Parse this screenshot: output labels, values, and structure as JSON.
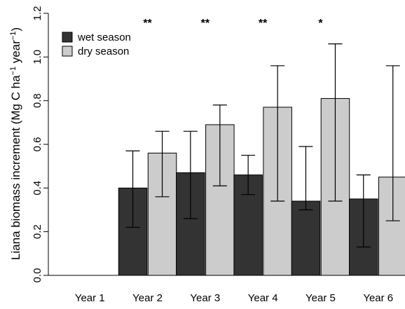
{
  "chart_data": {
    "type": "bar",
    "ylabel_text": "Liana biomass increment (Mg C ha",
    "ylabel_sup1": "−1",
    "ylabel_mid": " year",
    "ylabel_sup2": "−1",
    "ylabel_end": ")",
    "categories": [
      "Year 1",
      "Year 2",
      "Year 3",
      "Year 4",
      "Year 5",
      "Year 6"
    ],
    "ylim": [
      0,
      1.2
    ],
    "yticks": [
      "0.0",
      "0.2",
      "0.4",
      "0.6",
      "0.8",
      "1.0",
      "1.2"
    ],
    "series": [
      {
        "name": "wet season",
        "color": "#333333",
        "values": [
          null,
          0.4,
          0.47,
          0.46,
          0.34,
          0.35
        ],
        "err_low": [
          null,
          0.22,
          0.26,
          0.37,
          0.3,
          0.13
        ],
        "err_high": [
          null,
          0.57,
          0.66,
          0.55,
          0.59,
          0.46
        ]
      },
      {
        "name": "dry season",
        "color": "#cccccc",
        "values": [
          null,
          0.56,
          0.69,
          0.77,
          0.81,
          0.45
        ],
        "err_low": [
          null,
          0.36,
          0.41,
          0.34,
          0.34,
          0.25
        ],
        "err_high": [
          null,
          0.66,
          0.78,
          0.96,
          1.06,
          0.96
        ]
      }
    ],
    "significance": [
      "",
      "**",
      "**",
      "**",
      "*",
      ""
    ],
    "legend_position": "top-left",
    "grid": false
  }
}
